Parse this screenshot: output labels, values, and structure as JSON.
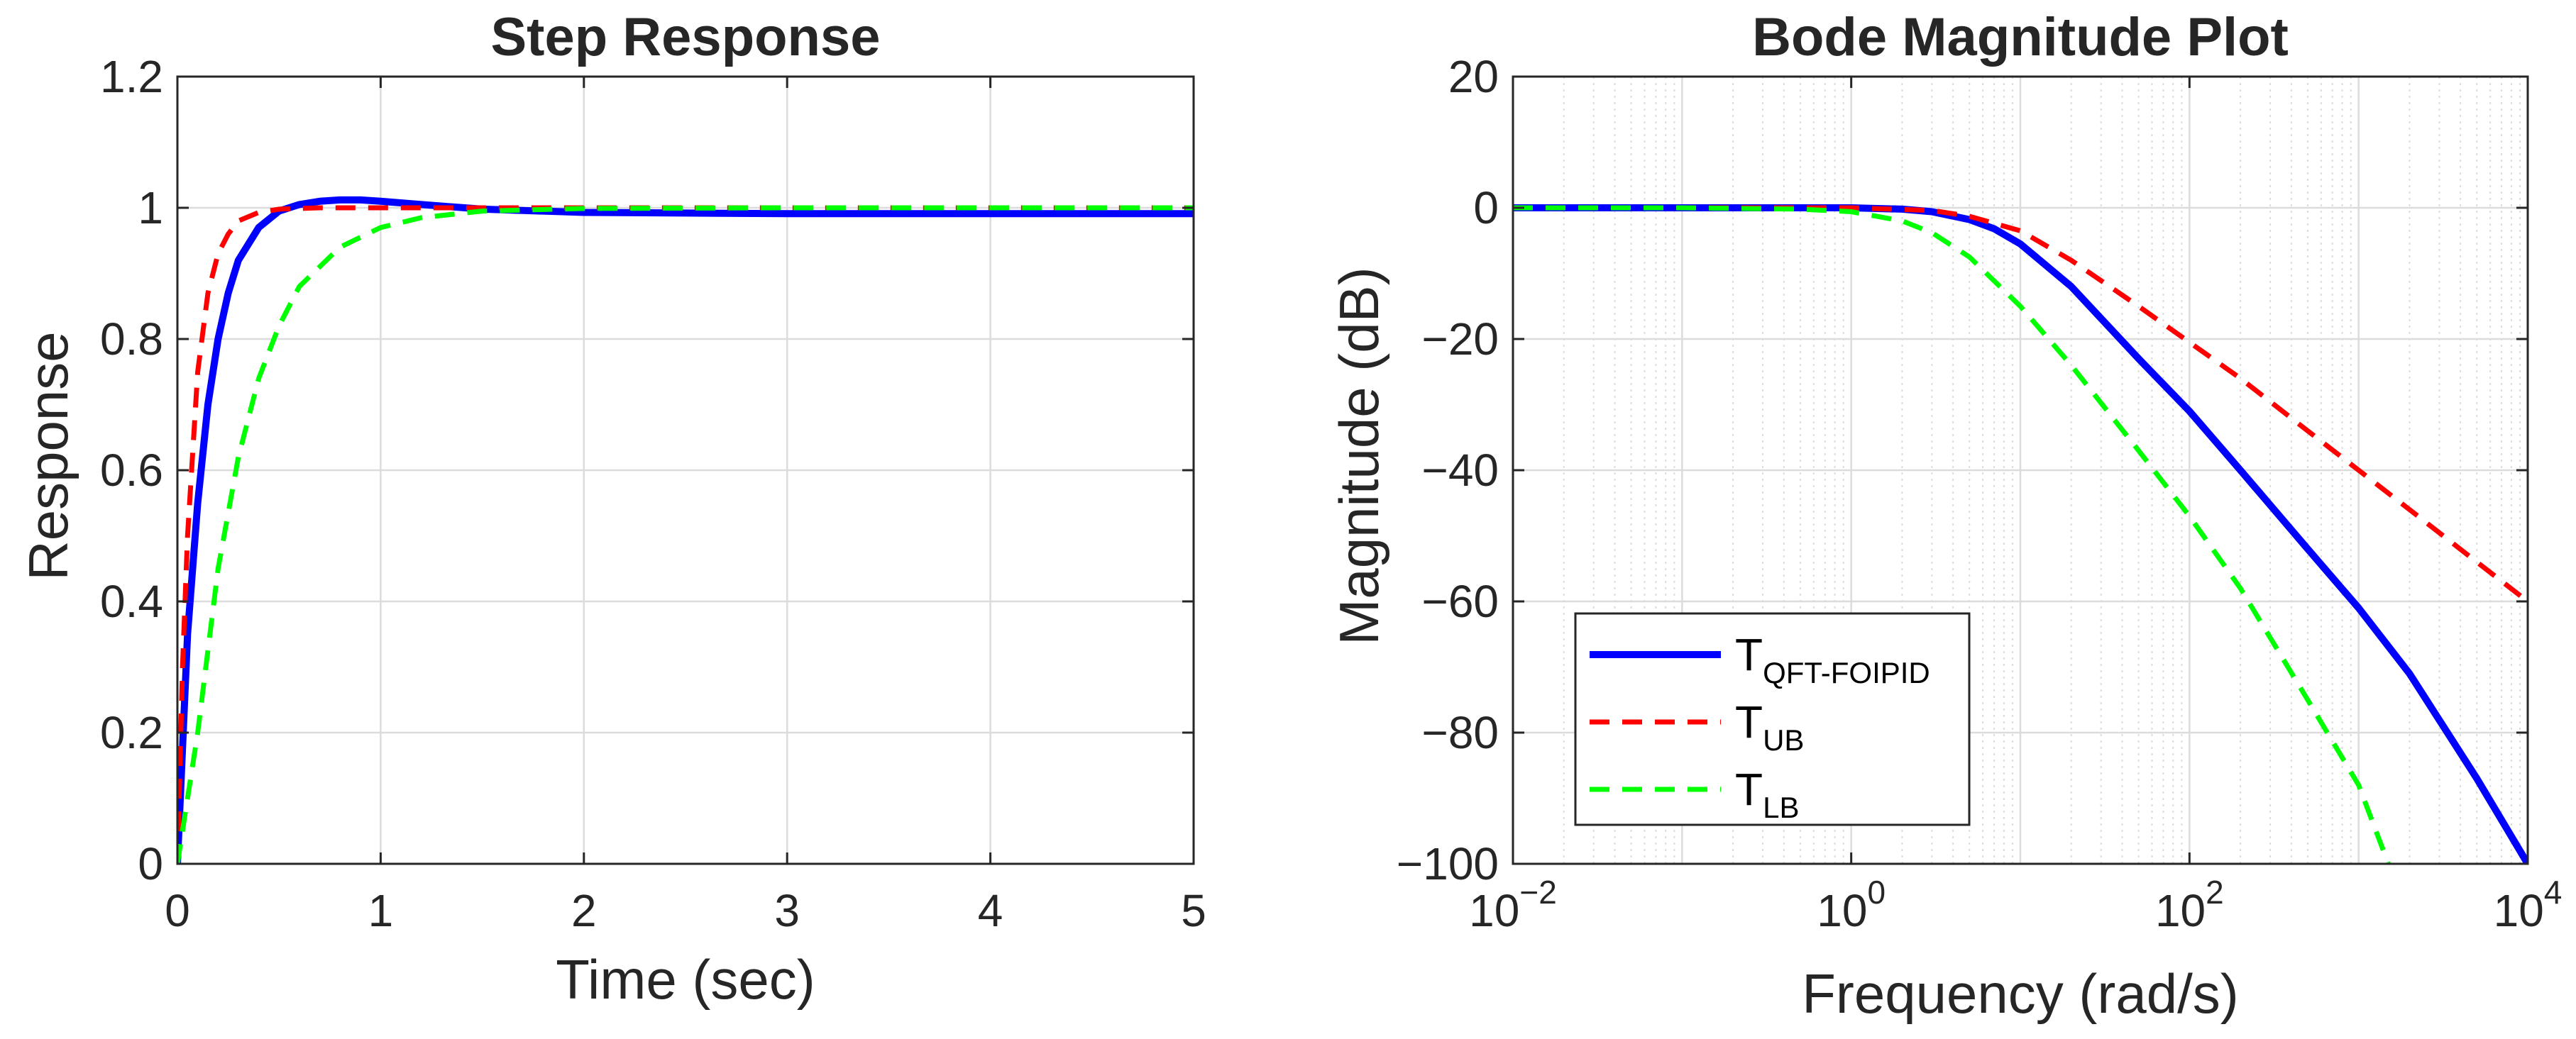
{
  "colors": {
    "blue": "#0000ff",
    "red": "#ff0000",
    "green": "#00ff00",
    "grid": "#dcdcdc",
    "axis": "#262626"
  },
  "chart_data": [
    {
      "type": "line",
      "title": "Step Response",
      "xlabel": "Time (sec)",
      "ylabel": "Response",
      "xlim": [
        0,
        5
      ],
      "ylim": [
        0,
        1.2
      ],
      "xticks": [
        0,
        1,
        2,
        3,
        4,
        5
      ],
      "xtick_labels": [
        "0",
        "1",
        "2",
        "3",
        "4",
        "5"
      ],
      "yticks": [
        0,
        0.2,
        0.4,
        0.6,
        0.8,
        1,
        1.2
      ],
      "ytick_labels": [
        "0",
        "0.2",
        "0.4",
        "0.6",
        "0.8",
        "1",
        "1.2"
      ],
      "grid": true,
      "series": [
        {
          "name": "T_QFT-FOIPID",
          "color": "blue",
          "style": "solid",
          "x": [
            0,
            0.05,
            0.1,
            0.15,
            0.2,
            0.25,
            0.3,
            0.4,
            0.5,
            0.6,
            0.7,
            0.8,
            0.9,
            1.0,
            1.2,
            1.5,
            2.0,
            3.0,
            4.0,
            5.0
          ],
          "y": [
            0,
            0.35,
            0.55,
            0.7,
            0.8,
            0.87,
            0.92,
            0.97,
            0.995,
            1.005,
            1.01,
            1.012,
            1.012,
            1.01,
            1.005,
            0.998,
            0.993,
            0.991,
            0.991,
            0.991
          ]
        },
        {
          "name": "T_UB",
          "color": "red",
          "style": "dashed",
          "x": [
            0,
            0.025,
            0.05,
            0.1,
            0.15,
            0.2,
            0.25,
            0.3,
            0.4,
            0.5,
            0.7,
            1.0,
            2.0,
            3.0,
            4.0,
            5.0
          ],
          "y": [
            0,
            0.3,
            0.5,
            0.75,
            0.87,
            0.93,
            0.96,
            0.98,
            0.993,
            0.998,
            1.0,
            1.0,
            1.0,
            1.0,
            1.0,
            1.0
          ]
        },
        {
          "name": "T_LB",
          "color": "green",
          "style": "dashed",
          "x": [
            0,
            0.1,
            0.2,
            0.3,
            0.4,
            0.5,
            0.6,
            0.8,
            1.0,
            1.2,
            1.5,
            2.0,
            3.0,
            4.0,
            5.0
          ],
          "y": [
            0,
            0.2,
            0.45,
            0.62,
            0.74,
            0.82,
            0.88,
            0.94,
            0.97,
            0.985,
            0.995,
            0.999,
            1.0,
            1.0,
            1.0
          ]
        }
      ]
    },
    {
      "type": "line",
      "title": "Bode Magnitude Plot",
      "xlabel": "Frequency (rad/s)",
      "ylabel": "Magnitude (dB)",
      "xscale": "log",
      "xlim": [
        0.01,
        10000
      ],
      "ylim": [
        -100,
        20
      ],
      "xticks": [
        0.01,
        1,
        100,
        10000
      ],
      "xtick_labels": [
        {
          "base": "10",
          "exp": "−2"
        },
        {
          "base": "10",
          "exp": "0"
        },
        {
          "base": "10",
          "exp": "2"
        },
        {
          "base": "10",
          "exp": "4"
        }
      ],
      "yticks": [
        -100,
        -80,
        -60,
        -40,
        -20,
        0,
        20
      ],
      "ytick_labels": [
        "−100",
        "−80",
        "−60",
        "−40",
        "−20",
        "0",
        "20"
      ],
      "grid": true,
      "legend_position": "bottom-left",
      "series": [
        {
          "name": "T_QFT-FOIPID",
          "color": "blue",
          "style": "solid",
          "x": [
            0.01,
            0.1,
            1,
            2,
            3,
            5,
            7,
            10,
            20,
            50,
            100,
            200,
            500,
            1000,
            2000,
            5000,
            10000
          ],
          "y": [
            0,
            0,
            0,
            -0.2,
            -0.6,
            -1.8,
            -3.2,
            -5.5,
            -12,
            -23,
            -31,
            -40,
            -52,
            -61,
            -71,
            -87,
            -100
          ]
        },
        {
          "name": "T_UB",
          "color": "red",
          "style": "dashed",
          "x": [
            0.01,
            0.1,
            1,
            3,
            5,
            10,
            20,
            50,
            100,
            200,
            500,
            1000,
            2000,
            5000,
            10000
          ],
          "y": [
            0,
            0,
            0,
            -0.4,
            -1.3,
            -3.5,
            -8,
            -15,
            -20.5,
            -26,
            -34,
            -40,
            -46,
            -54,
            -60
          ]
        },
        {
          "name": "T_LB",
          "color": "green",
          "style": "dashed",
          "x": [
            0.01,
            0.1,
            0.5,
            1,
            2,
            3,
            5,
            10,
            20,
            50,
            100,
            200,
            500,
            1000,
            1500
          ],
          "y": [
            0,
            0,
            -0.2,
            -0.6,
            -2,
            -3.8,
            -7.5,
            -15,
            -24,
            -37,
            -47,
            -58,
            -75,
            -88,
            -100
          ]
        }
      ],
      "legend": [
        {
          "base": "T",
          "sub": "QFT-FOIPID",
          "color": "blue",
          "style": "solid"
        },
        {
          "base": "T",
          "sub": "UB",
          "color": "red",
          "style": "dashed"
        },
        {
          "base": "T",
          "sub": "LB",
          "color": "green",
          "style": "dashed"
        }
      ]
    }
  ]
}
